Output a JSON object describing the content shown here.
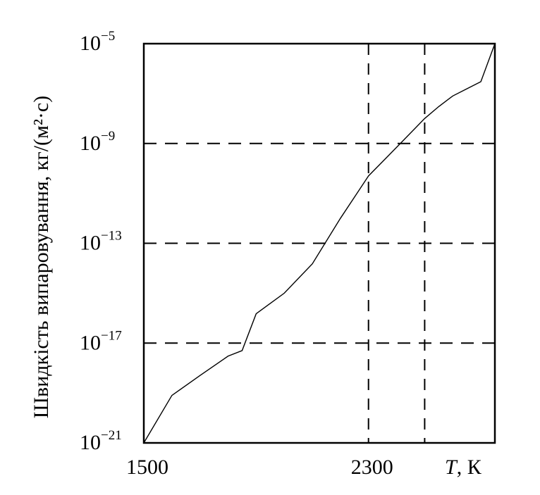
{
  "chart_data": {
    "type": "line",
    "title": "",
    "ylabel": "Швидкість випаровування,  кг/(м²·с)",
    "xlabel_italic": "T",
    "xlabel_unit": ", К",
    "y_scale": "log",
    "xlim": [
      1500,
      2750
    ],
    "ylim": [
      1e-21,
      1e-05
    ],
    "x_tick_labels": [
      "1500",
      "2300"
    ],
    "x_ticks": [
      1500,
      2300
    ],
    "y_ticks": [
      {
        "base": "10",
        "exp": "−21",
        "value": 1e-21
      },
      {
        "base": "10",
        "exp": "−17",
        "value": 1e-17
      },
      {
        "base": "10",
        "exp": "−13",
        "value": 1e-13
      },
      {
        "base": "10",
        "exp": "−9",
        "value": 1e-09
      },
      {
        "base": "10",
        "exp": "−5",
        "value": 1e-05
      }
    ],
    "grid": {
      "style": "dashed",
      "x_lines": [
        2300,
        2300,
        2300
      ],
      "y_lines": [
        1e-17,
        1e-13,
        1e-09
      ]
    },
    "vertical_dashed_x": [
      2300,
      2500
    ],
    "series": [
      {
        "x": [
          1500,
          1600,
          1700,
          1800,
          1850,
          1900,
          2000,
          2100,
          2200,
          2300,
          2400,
          2500,
          2550,
          2600,
          2700,
          2750
        ],
        "y": [
          1e-21,
          8e-20,
          5e-19,
          3e-18,
          5e-18,
          1.5e-16,
          1e-15,
          1.5e-14,
          1e-12,
          5e-11,
          7e-10,
          1e-08,
          3e-08,
          8e-08,
          3e-07,
          1e-05
        ]
      }
    ]
  }
}
